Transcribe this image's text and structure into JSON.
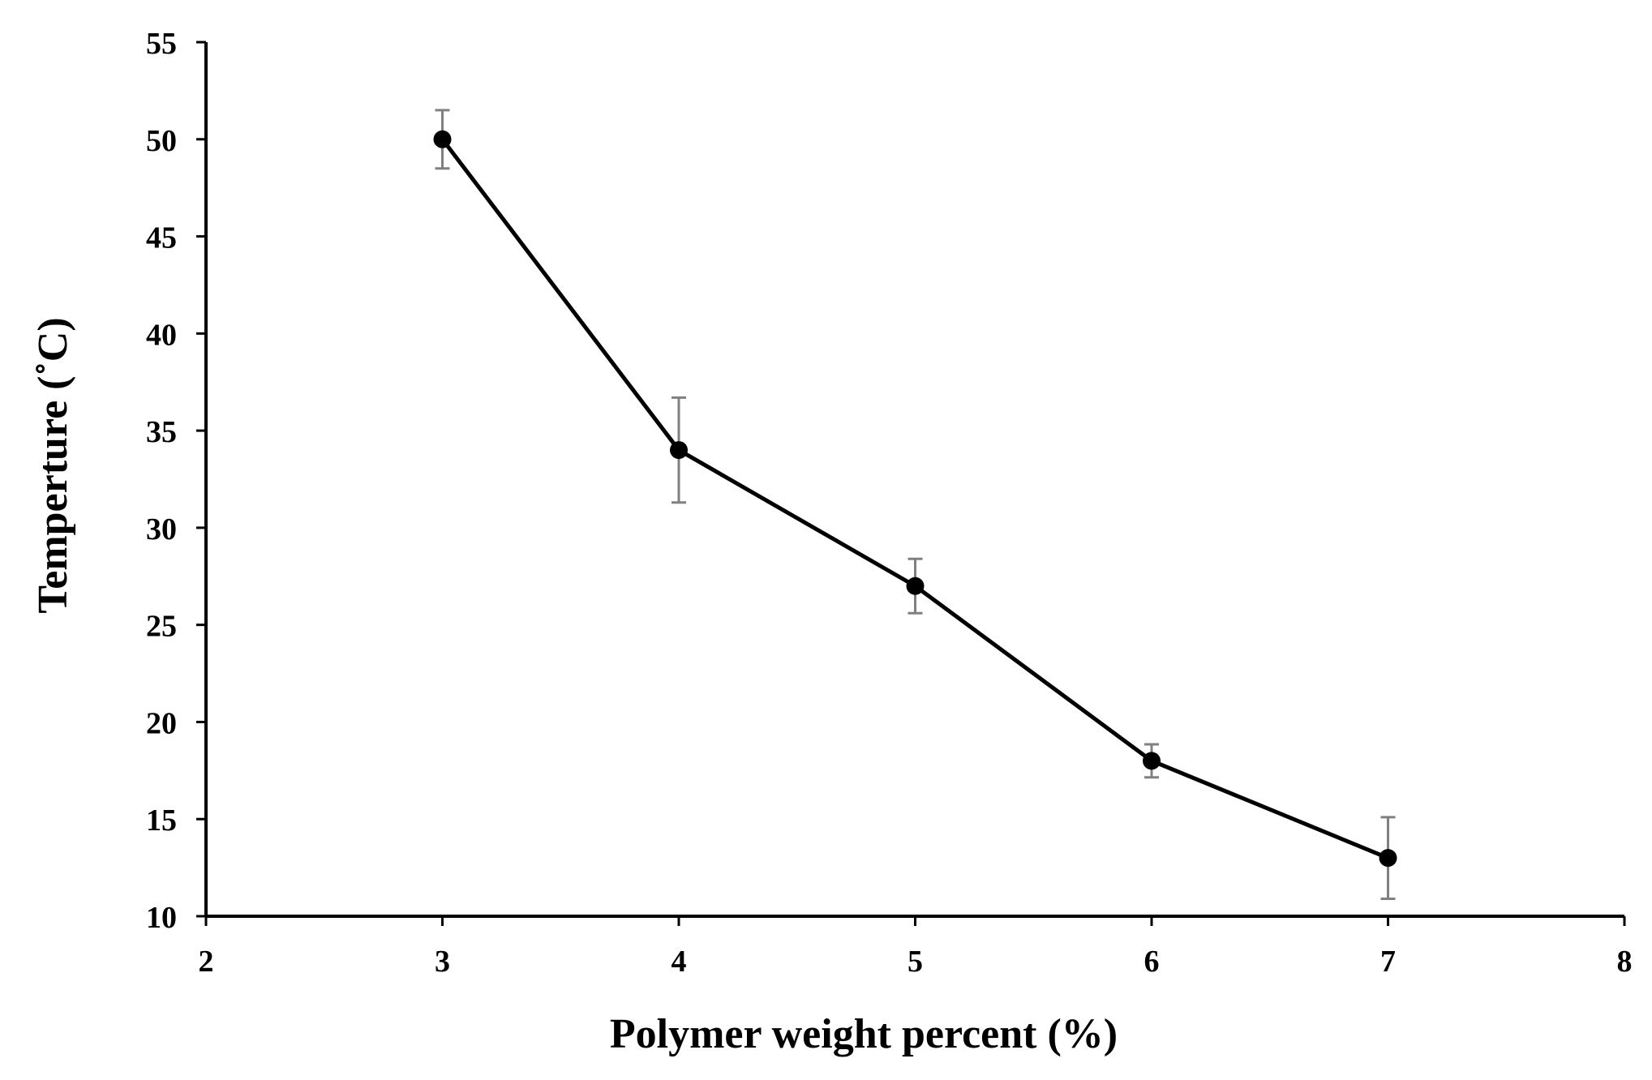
{
  "chart_data": {
    "type": "line",
    "title": "",
    "xlabel": "Polymer weight percent (%)",
    "ylabel": "Temperture (˚C)",
    "xlim": [
      2,
      8
    ],
    "ylim": [
      10,
      55
    ],
    "xticks": [
      2,
      3,
      4,
      5,
      6,
      7,
      8
    ],
    "yticks": [
      10,
      15,
      20,
      25,
      30,
      35,
      40,
      45,
      50,
      55
    ],
    "xtick_labels": [
      "2",
      "3",
      "4",
      "5",
      "6",
      "7",
      "8"
    ],
    "ytick_labels": [
      "10",
      "15",
      "20",
      "25",
      "30",
      "35",
      "40",
      "45",
      "50",
      "55"
    ],
    "grid": false,
    "legend": false,
    "series": [
      {
        "x": [
          3,
          4,
          5,
          6,
          7
        ],
        "y": [
          50,
          34,
          27,
          18,
          13
        ],
        "error": [
          1.5,
          2.7,
          1.4,
          0.85,
          2.1
        ],
        "line_color": "#000000",
        "marker": "circle",
        "marker_color": "#000000",
        "error_bar_color": "#808080"
      }
    ]
  }
}
